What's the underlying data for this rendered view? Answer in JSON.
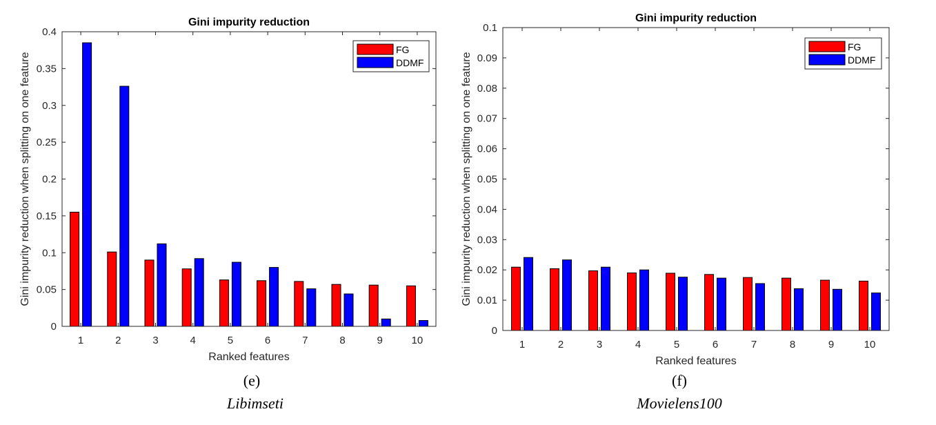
{
  "chart_data": [
    {
      "type": "bar",
      "title": "Gini impurity reduction",
      "xlabel": "Ranked features",
      "ylabel": "Gini impurity reduction when splitting on one feature",
      "categories": [
        "1",
        "2",
        "3",
        "4",
        "5",
        "6",
        "7",
        "8",
        "9",
        "10"
      ],
      "ylim": [
        0,
        0.4
      ],
      "yticks": [
        "0",
        "0.05",
        "0.1",
        "0.15",
        "0.2",
        "0.25",
        "0.3",
        "0.35",
        "0.4"
      ],
      "ytick_values": [
        0,
        0.05,
        0.1,
        0.15,
        0.2,
        0.25,
        0.3,
        0.35,
        0.4
      ],
      "legend_position": "top-right",
      "grid": false,
      "series": [
        {
          "name": "FG",
          "color": "#ff0000",
          "values": [
            0.155,
            0.101,
            0.09,
            0.078,
            0.063,
            0.062,
            0.061,
            0.057,
            0.056,
            0.055
          ]
        },
        {
          "name": "DDMF",
          "color": "#0000ff",
          "values": [
            0.385,
            0.326,
            0.112,
            0.092,
            0.087,
            0.08,
            0.051,
            0.044,
            0.01,
            0.008
          ]
        }
      ]
    },
    {
      "type": "bar",
      "title": "Gini impurity reduction",
      "xlabel": "Ranked features",
      "ylabel": "Gini impurity reduction when splitting on one feature",
      "categories": [
        "1",
        "2",
        "3",
        "4",
        "5",
        "6",
        "7",
        "8",
        "9",
        "10"
      ],
      "ylim": [
        0,
        0.1
      ],
      "yticks": [
        "0",
        "0.01",
        "0.02",
        "0.03",
        "0.04",
        "0.05",
        "0.06",
        "0.07",
        "0.08",
        "0.09",
        "0.1"
      ],
      "ytick_values": [
        0,
        0.01,
        0.02,
        0.03,
        0.04,
        0.05,
        0.06,
        0.07,
        0.08,
        0.09,
        0.1
      ],
      "legend_position": "top-right",
      "grid": false,
      "series": [
        {
          "name": "FG",
          "color": "#ff0000",
          "values": [
            0.0209,
            0.0204,
            0.0197,
            0.019,
            0.0189,
            0.0185,
            0.0175,
            0.0173,
            0.0166,
            0.0163
          ]
        },
        {
          "name": "DDMF",
          "color": "#0000ff",
          "values": [
            0.0241,
            0.0233,
            0.0209,
            0.02,
            0.0176,
            0.0173,
            0.0155,
            0.0138,
            0.0136,
            0.0124
          ]
        }
      ]
    }
  ],
  "captions": [
    {
      "letter": "(e)",
      "name": "Libimseti"
    },
    {
      "letter": "(f)",
      "name": "Movielens100"
    }
  ]
}
